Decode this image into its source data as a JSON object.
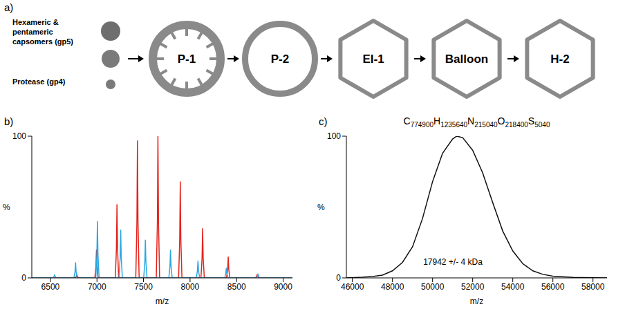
{
  "diagram": {
    "panel_label": "a)",
    "inputs": [
      {
        "label": "Hexameric & pentameric capsomers (gp5)"
      },
      {
        "label": "Protease (gp4)"
      }
    ],
    "stages": [
      "P-1",
      "P-2",
      "EI-1",
      "Balloon",
      "H-2"
    ]
  },
  "chart_data": [
    {
      "panel_label": "b)",
      "type": "line",
      "xlabel": "m/z",
      "ylabel": "%",
      "xlim": [
        6300,
        9100
      ],
      "xticks": [
        6500,
        7000,
        7500,
        8000,
        8500,
        9000
      ],
      "ylim": [
        0,
        100
      ],
      "yticks": [
        0,
        100
      ],
      "series": [
        {
          "color": "#e5231b",
          "x": [
            6300,
            6767,
            6779,
            6785,
            6791,
            6803,
            6977,
            6989,
            6995,
            7001,
            7013,
            7197,
            7209,
            7215,
            7221,
            7233,
            7417,
            7429,
            7435,
            7441,
            7453,
            7637,
            7649,
            7655,
            7661,
            7673,
            7877,
            7889,
            7895,
            7901,
            7913,
            8117,
            8129,
            8135,
            8141,
            8153,
            8392,
            8404,
            8410,
            8416,
            8428,
            8702,
            8714,
            8720,
            8726,
            8738,
            9100
          ],
          "values": [
            0,
            0,
            1,
            2,
            1,
            0,
            0,
            8,
            20,
            8,
            0,
            0,
            21,
            52,
            21,
            0,
            0,
            39,
            97,
            39,
            0,
            0,
            40,
            100,
            40,
            0,
            0,
            27,
            68,
            27,
            0,
            0,
            14,
            35,
            14,
            0,
            0,
            6,
            15,
            6,
            0,
            0,
            1,
            2,
            1,
            0,
            0
          ]
        },
        {
          "color": "#29a9e1",
          "x": [
            6300,
            6527,
            6539,
            6545,
            6551,
            6563,
            6752,
            6764,
            6770,
            6776,
            6788,
            6987,
            6999,
            7005,
            7011,
            7023,
            7237,
            7249,
            7255,
            7261,
            7273,
            7502,
            7514,
            7520,
            7526,
            7538,
            7772,
            7784,
            7790,
            7796,
            7808,
            8067,
            8079,
            8085,
            8091,
            8103,
            8372,
            8384,
            8390,
            8396,
            8408,
            8712,
            8724,
            8730,
            8736,
            8748,
            9100
          ],
          "values": [
            0,
            0,
            1,
            2,
            1,
            0,
            0,
            4,
            11,
            4,
            0,
            0,
            16,
            40,
            16,
            0,
            0,
            14,
            34,
            14,
            0,
            0,
            11,
            27,
            11,
            0,
            0,
            8,
            20,
            8,
            0,
            0,
            5,
            12,
            5,
            0,
            0,
            3,
            7,
            3,
            0,
            0,
            1,
            3,
            1,
            0,
            0
          ]
        }
      ]
    },
    {
      "panel_label": "c)",
      "type": "line",
      "title": "C774900H1235640N215040O218400S5040",
      "annotations": [
        "17942 +/- 4 kDa"
      ],
      "xlabel": "m/z",
      "ylabel": "%",
      "xlim": [
        45700,
        58700
      ],
      "xticks": [
        46000,
        48000,
        50000,
        52000,
        54000,
        56000,
        58000
      ],
      "ylim": [
        0,
        100
      ],
      "yticks": [
        0,
        100
      ],
      "series": [
        {
          "color": "#111111",
          "x": [
            45700,
            46500,
            47000,
            47500,
            48000,
            48500,
            49000,
            49500,
            50000,
            50500,
            51000,
            51200,
            51500,
            52000,
            52500,
            53000,
            53500,
            54000,
            54500,
            55000,
            55500,
            56000,
            57000,
            58000,
            58700
          ],
          "values": [
            0,
            0.5,
            1,
            2,
            5,
            11,
            22,
            42,
            68,
            88,
            98,
            100,
            99,
            90,
            74,
            53,
            33,
            19,
            10,
            5,
            2.5,
            1.2,
            0.4,
            0.1,
            0
          ]
        }
      ]
    }
  ]
}
